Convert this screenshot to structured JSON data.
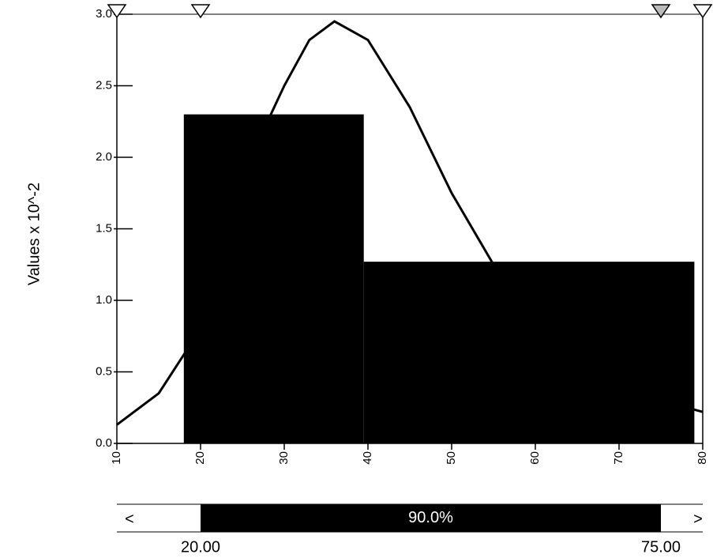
{
  "chart_data": {
    "type": "histogram",
    "y_label": "Values x 10^-2",
    "bins": [
      18,
      39.5,
      79
    ],
    "values": [
      2.3,
      1.27
    ],
    "color": "#000000",
    "curve": {
      "x": [
        10,
        15,
        20,
        25,
        28,
        30,
        33,
        36,
        40,
        45,
        50,
        55,
        60,
        65,
        70,
        75,
        80
      ],
      "values": [
        0.13,
        0.35,
        0.8,
        1.6,
        2.25,
        2.5,
        2.82,
        2.95,
        2.82,
        2.35,
        1.75,
        1.25,
        0.85,
        0.6,
        0.42,
        0.3,
        0.22
      ],
      "color": "#000000"
    },
    "xlim": [
      10,
      80
    ],
    "xticks": [
      10,
      20,
      30,
      40,
      50,
      60,
      70,
      80
    ],
    "ylim": [
      0,
      3
    ],
    "yticks": [
      {
        "value": 0,
        "label": "0.0"
      },
      {
        "value": 0.5,
        "label": "0.5"
      },
      {
        "value": 1,
        "label": "1.0"
      },
      {
        "value": 1.5,
        "label": "1.5"
      },
      {
        "value": 2,
        "label": "2.0"
      },
      {
        "value": 2.5,
        "label": "2.5"
      },
      {
        "value": 3,
        "label": "3.0"
      }
    ],
    "range": {
      "values": [
        20,
        75
      ],
      "value_labels": [
        "20.00",
        "75.00"
      ],
      "probability": 90,
      "probability_label": "90.0%",
      "left_button": "<",
      "right_button": ">"
    }
  }
}
